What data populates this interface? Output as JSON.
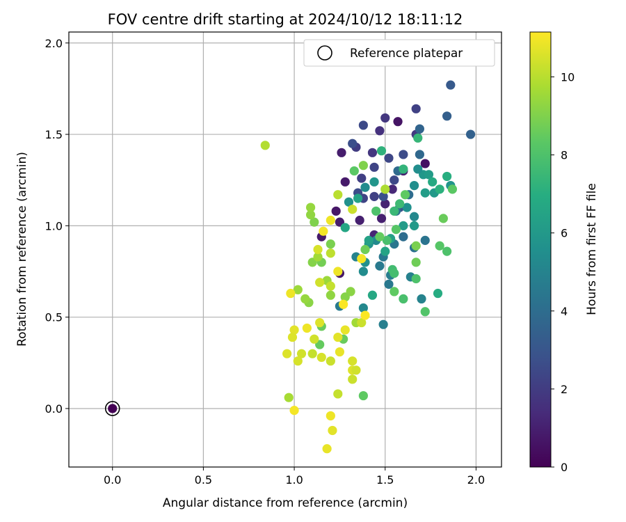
{
  "chart_data": {
    "type": "scatter",
    "title": "FOV centre drift starting at 2024/10/12 18:11:12",
    "xlabel": "Angular distance from reference (arcmin)",
    "ylabel": "Rotation from reference (arcmin)",
    "xlim": [
      -0.24,
      2.14
    ],
    "ylim": [
      -0.32,
      2.06
    ],
    "xticks": [
      0.0,
      0.5,
      1.0,
      1.5,
      2.0
    ],
    "yticks": [
      0.0,
      0.5,
      1.0,
      1.5,
      2.0
    ],
    "xtick_labels": [
      "0.0",
      "0.5",
      "1.0",
      "1.5",
      "2.0"
    ],
    "ytick_labels": [
      "0.0",
      "0.5",
      "1.0",
      "1.5",
      "2.0"
    ],
    "grid": true,
    "legend": {
      "position": "top-right",
      "entries": [
        "Reference platepar"
      ]
    },
    "reference_point": {
      "x": 0.0,
      "y": 0.0,
      "c": 0.0
    },
    "colorbar": {
      "label": "Hours from first FF file",
      "colormap": "viridis",
      "range": [
        0,
        11.15
      ],
      "ticks": [
        0,
        2,
        4,
        6,
        8,
        10
      ],
      "tick_labels": [
        "0",
        "2",
        "4",
        "6",
        "8",
        "10"
      ]
    },
    "points": [
      {
        "x": 1.57,
        "y": 1.57,
        "c": 0.6
      },
      {
        "x": 1.72,
        "y": 1.34,
        "c": 0.5
      },
      {
        "x": 1.28,
        "y": 1.24,
        "c": 0.8
      },
      {
        "x": 1.23,
        "y": 1.08,
        "c": 0.7
      },
      {
        "x": 1.25,
        "y": 1.02,
        "c": 0.9
      },
      {
        "x": 1.15,
        "y": 0.94,
        "c": 0.8
      },
      {
        "x": 1.25,
        "y": 0.74,
        "c": 0.7
      },
      {
        "x": 1.26,
        "y": 1.4,
        "c": 0.9
      },
      {
        "x": 1.36,
        "y": 1.03,
        "c": 1.0
      },
      {
        "x": 1.5,
        "y": 1.12,
        "c": 1.1
      },
      {
        "x": 1.48,
        "y": 1.04,
        "c": 1.0
      },
      {
        "x": 1.44,
        "y": 0.95,
        "c": 1.2
      },
      {
        "x": 1.54,
        "y": 1.2,
        "c": 1.3
      },
      {
        "x": 1.6,
        "y": 1.3,
        "c": 1.0
      },
      {
        "x": 1.5,
        "y": 1.59,
        "c": 1.8
      },
      {
        "x": 1.47,
        "y": 1.52,
        "c": 1.6
      },
      {
        "x": 1.38,
        "y": 1.55,
        "c": 2.5
      },
      {
        "x": 1.67,
        "y": 1.64,
        "c": 2.2
      },
      {
        "x": 1.67,
        "y": 1.5,
        "c": 1.9
      },
      {
        "x": 1.34,
        "y": 1.43,
        "c": 2.0
      },
      {
        "x": 1.43,
        "y": 1.4,
        "c": 1.8
      },
      {
        "x": 1.44,
        "y": 1.32,
        "c": 2.3
      },
      {
        "x": 1.52,
        "y": 1.37,
        "c": 2.4
      },
      {
        "x": 1.6,
        "y": 1.39,
        "c": 2.6
      },
      {
        "x": 1.37,
        "y": 1.26,
        "c": 2.1
      },
      {
        "x": 1.35,
        "y": 1.18,
        "c": 2.6
      },
      {
        "x": 1.44,
        "y": 1.16,
        "c": 2.2
      },
      {
        "x": 1.49,
        "y": 1.16,
        "c": 2.8
      },
      {
        "x": 1.55,
        "y": 1.25,
        "c": 2.5
      },
      {
        "x": 1.58,
        "y": 1.1,
        "c": 2.9
      },
      {
        "x": 1.38,
        "y": 1.15,
        "c": 2.3
      },
      {
        "x": 1.32,
        "y": 1.45,
        "c": 2.7
      },
      {
        "x": 1.86,
        "y": 1.77,
        "c": 3.2
      },
      {
        "x": 1.97,
        "y": 1.5,
        "c": 3.5
      },
      {
        "x": 1.84,
        "y": 1.6,
        "c": 3.4
      },
      {
        "x": 1.69,
        "y": 1.53,
        "c": 3.6
      },
      {
        "x": 1.69,
        "y": 1.39,
        "c": 3.8
      },
      {
        "x": 1.57,
        "y": 1.3,
        "c": 3.9
      },
      {
        "x": 1.63,
        "y": 1.17,
        "c": 4.0
      },
      {
        "x": 1.56,
        "y": 1.08,
        "c": 4.1
      },
      {
        "x": 1.6,
        "y": 0.94,
        "c": 4.0
      },
      {
        "x": 1.72,
        "y": 0.92,
        "c": 4.3
      },
      {
        "x": 1.66,
        "y": 0.88,
        "c": 4.2
      },
      {
        "x": 1.55,
        "y": 0.9,
        "c": 4.4
      },
      {
        "x": 1.49,
        "y": 0.83,
        "c": 4.5
      },
      {
        "x": 1.47,
        "y": 0.78,
        "c": 4.6
      },
      {
        "x": 1.53,
        "y": 0.73,
        "c": 4.7
      },
      {
        "x": 1.52,
        "y": 0.68,
        "c": 4.5
      },
      {
        "x": 1.49,
        "y": 0.46,
        "c": 4.8
      },
      {
        "x": 1.64,
        "y": 0.72,
        "c": 4.9
      },
      {
        "x": 1.7,
        "y": 0.6,
        "c": 5.0
      },
      {
        "x": 1.38,
        "y": 0.55,
        "c": 5.2
      },
      {
        "x": 1.25,
        "y": 0.56,
        "c": 4.6
      },
      {
        "x": 1.38,
        "y": 0.75,
        "c": 5.4
      },
      {
        "x": 1.39,
        "y": 0.8,
        "c": 5.6
      },
      {
        "x": 1.34,
        "y": 0.83,
        "c": 5.0
      },
      {
        "x": 1.41,
        "y": 0.9,
        "c": 5.7
      },
      {
        "x": 1.45,
        "y": 0.92,
        "c": 5.3
      },
      {
        "x": 1.3,
        "y": 1.13,
        "c": 5.6
      },
      {
        "x": 1.39,
        "y": 1.21,
        "c": 5.4
      },
      {
        "x": 1.44,
        "y": 1.24,
        "c": 5.8
      },
      {
        "x": 1.62,
        "y": 1.1,
        "c": 5.6
      },
      {
        "x": 1.66,
        "y": 1.05,
        "c": 5.2
      },
      {
        "x": 1.66,
        "y": 1.22,
        "c": 5.5
      },
      {
        "x": 1.71,
        "y": 1.28,
        "c": 5.9
      },
      {
        "x": 1.68,
        "y": 1.31,
        "c": 5.5
      },
      {
        "x": 1.77,
        "y": 1.18,
        "c": 6.0
      },
      {
        "x": 1.86,
        "y": 1.22,
        "c": 5.8
      },
      {
        "x": 1.74,
        "y": 1.28,
        "c": 6.1
      },
      {
        "x": 1.72,
        "y": 1.18,
        "c": 6.2
      },
      {
        "x": 1.66,
        "y": 1.0,
        "c": 6.0
      },
      {
        "x": 1.6,
        "y": 1.0,
        "c": 6.1
      },
      {
        "x": 1.53,
        "y": 0.93,
        "c": 6.3
      },
      {
        "x": 1.5,
        "y": 0.86,
        "c": 6.5
      },
      {
        "x": 1.41,
        "y": 0.92,
        "c": 6.4
      },
      {
        "x": 1.28,
        "y": 0.99,
        "c": 6.6
      },
      {
        "x": 1.35,
        "y": 1.15,
        "c": 6.5
      },
      {
        "x": 1.43,
        "y": 0.62,
        "c": 6.7
      },
      {
        "x": 1.79,
        "y": 0.63,
        "c": 6.9
      },
      {
        "x": 1.84,
        "y": 1.27,
        "c": 7.0
      },
      {
        "x": 1.8,
        "y": 1.2,
        "c": 7.1
      },
      {
        "x": 1.76,
        "y": 1.24,
        "c": 6.8
      },
      {
        "x": 1.48,
        "y": 1.41,
        "c": 7.2
      },
      {
        "x": 1.6,
        "y": 1.31,
        "c": 7.3
      },
      {
        "x": 1.68,
        "y": 1.48,
        "c": 7.4
      },
      {
        "x": 1.55,
        "y": 1.08,
        "c": 7.5
      },
      {
        "x": 1.58,
        "y": 1.12,
        "c": 7.6
      },
      {
        "x": 1.54,
        "y": 0.76,
        "c": 7.7
      },
      {
        "x": 1.55,
        "y": 0.74,
        "c": 7.8
      },
      {
        "x": 1.6,
        "y": 0.6,
        "c": 7.9
      },
      {
        "x": 1.67,
        "y": 0.71,
        "c": 8.0
      },
      {
        "x": 1.72,
        "y": 0.53,
        "c": 8.1
      },
      {
        "x": 1.84,
        "y": 0.86,
        "c": 8.0
      },
      {
        "x": 1.8,
        "y": 0.89,
        "c": 8.2
      },
      {
        "x": 1.87,
        "y": 1.2,
        "c": 8.3
      },
      {
        "x": 1.61,
        "y": 1.17,
        "c": 8.4
      },
      {
        "x": 1.56,
        "y": 0.98,
        "c": 8.2
      },
      {
        "x": 1.51,
        "y": 0.92,
        "c": 7.9
      },
      {
        "x": 1.47,
        "y": 0.94,
        "c": 8.5
      },
      {
        "x": 1.55,
        "y": 0.64,
        "c": 8.4
      },
      {
        "x": 1.45,
        "y": 1.08,
        "c": 8.0
      },
      {
        "x": 1.33,
        "y": 1.3,
        "c": 8.3
      },
      {
        "x": 1.39,
        "y": 0.87,
        "c": 8.7
      },
      {
        "x": 1.38,
        "y": 0.07,
        "c": 8.4
      },
      {
        "x": 1.27,
        "y": 0.38,
        "c": 8.6
      },
      {
        "x": 1.14,
        "y": 0.35,
        "c": 8.5
      },
      {
        "x": 1.15,
        "y": 0.45,
        "c": 8.6
      },
      {
        "x": 1.15,
        "y": 0.8,
        "c": 8.8
      },
      {
        "x": 1.2,
        "y": 0.9,
        "c": 8.9
      },
      {
        "x": 1.38,
        "y": 1.33,
        "c": 9.0
      },
      {
        "x": 1.67,
        "y": 0.8,
        "c": 8.7
      },
      {
        "x": 1.67,
        "y": 0.89,
        "c": 8.9
      },
      {
        "x": 1.82,
        "y": 1.04,
        "c": 8.6
      },
      {
        "x": 1.1,
        "y": 0.8,
        "c": 9.1
      },
      {
        "x": 1.11,
        "y": 1.02,
        "c": 9.0
      },
      {
        "x": 1.09,
        "y": 1.06,
        "c": 9.3
      },
      {
        "x": 1.09,
        "y": 1.1,
        "c": 9.4
      },
      {
        "x": 1.13,
        "y": 0.83,
        "c": 9.6
      },
      {
        "x": 1.08,
        "y": 0.58,
        "c": 9.2
      },
      {
        "x": 1.06,
        "y": 0.6,
        "c": 9.4
      },
      {
        "x": 1.02,
        "y": 0.65,
        "c": 9.5
      },
      {
        "x": 1.2,
        "y": 0.62,
        "c": 9.3
      },
      {
        "x": 1.18,
        "y": 0.7,
        "c": 9.5
      },
      {
        "x": 1.31,
        "y": 0.64,
        "c": 9.2
      },
      {
        "x": 1.28,
        "y": 0.61,
        "c": 9.1
      },
      {
        "x": 1.34,
        "y": 0.47,
        "c": 9.6
      },
      {
        "x": 1.37,
        "y": 0.47,
        "c": 10.3
      },
      {
        "x": 1.5,
        "y": 1.2,
        "c": 9.8
      },
      {
        "x": 0.84,
        "y": 1.44,
        "c": 9.9
      },
      {
        "x": 0.97,
        "y": 0.06,
        "c": 9.7
      },
      {
        "x": 1.24,
        "y": 1.17,
        "c": 10.0
      },
      {
        "x": 1.32,
        "y": 1.09,
        "c": 10.3
      },
      {
        "x": 1.2,
        "y": 0.85,
        "c": 10.1
      },
      {
        "x": 1.13,
        "y": 0.87,
        "c": 10.5
      },
      {
        "x": 1.14,
        "y": 0.69,
        "c": 10.4
      },
      {
        "x": 1.2,
        "y": 0.67,
        "c": 10.2
      },
      {
        "x": 1.14,
        "y": 0.47,
        "c": 10.6
      },
      {
        "x": 1.11,
        "y": 0.38,
        "c": 10.4
      },
      {
        "x": 1.1,
        "y": 0.3,
        "c": 10.2
      },
      {
        "x": 1.15,
        "y": 0.28,
        "c": 10.5
      },
      {
        "x": 1.2,
        "y": 0.26,
        "c": 10.3
      },
      {
        "x": 1.25,
        "y": 0.31,
        "c": 10.8
      },
      {
        "x": 1.0,
        "y": 0.43,
        "c": 10.7
      },
      {
        "x": 0.99,
        "y": 0.39,
        "c": 10.6
      },
      {
        "x": 1.07,
        "y": 0.44,
        "c": 10.9
      },
      {
        "x": 1.04,
        "y": 0.3,
        "c": 10.4
      },
      {
        "x": 1.02,
        "y": 0.26,
        "c": 10.5
      },
      {
        "x": 0.96,
        "y": 0.3,
        "c": 10.6
      },
      {
        "x": 1.24,
        "y": 0.39,
        "c": 10.7
      },
      {
        "x": 1.28,
        "y": 0.43,
        "c": 10.8
      },
      {
        "x": 1.32,
        "y": 0.26,
        "c": 10.5
      },
      {
        "x": 1.32,
        "y": 0.21,
        "c": 10.6
      },
      {
        "x": 1.34,
        "y": 0.21,
        "c": 10.4
      },
      {
        "x": 1.32,
        "y": 0.16,
        "c": 10.3
      },
      {
        "x": 1.24,
        "y": 0.08,
        "c": 10.2
      },
      {
        "x": 1.2,
        "y": -0.04,
        "c": 10.9
      },
      {
        "x": 1.0,
        "y": -0.01,
        "c": 11.0
      },
      {
        "x": 1.21,
        "y": -0.12,
        "c": 10.7
      },
      {
        "x": 1.18,
        "y": -0.22,
        "c": 10.8
      },
      {
        "x": 1.24,
        "y": 0.75,
        "c": 10.9
      },
      {
        "x": 1.2,
        "y": 1.03,
        "c": 10.9
      },
      {
        "x": 1.16,
        "y": 0.97,
        "c": 11.0
      },
      {
        "x": 0.98,
        "y": 0.63,
        "c": 10.9
      },
      {
        "x": 1.37,
        "y": 0.82,
        "c": 11.0
      },
      {
        "x": 1.39,
        "y": 0.51,
        "c": 11.1
      },
      {
        "x": 1.27,
        "y": 0.57,
        "c": 11.1
      }
    ]
  }
}
